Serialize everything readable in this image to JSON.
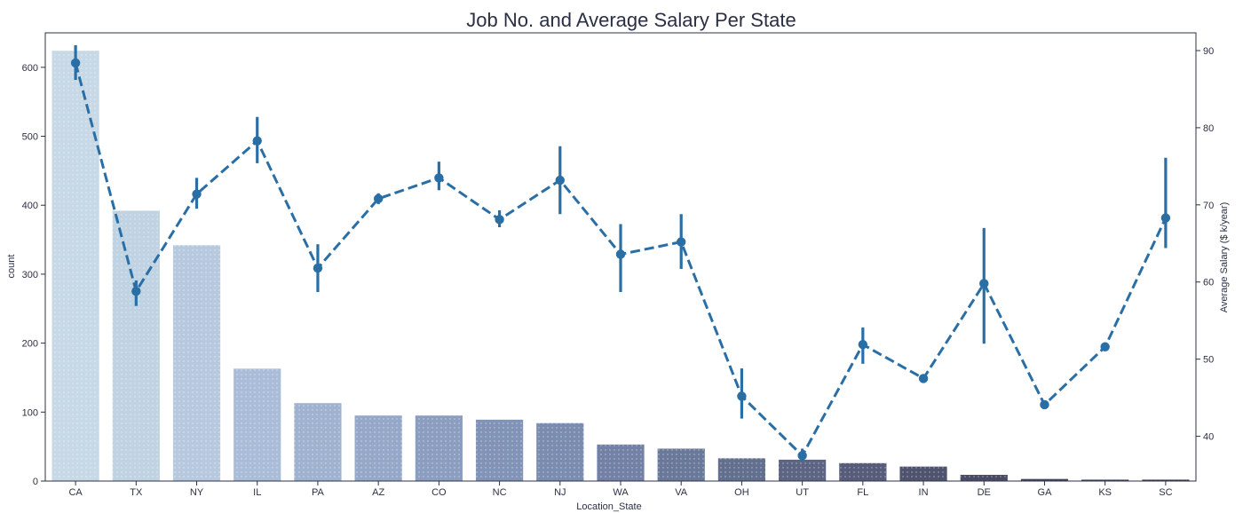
{
  "chart_data": {
    "type": "bar",
    "title": "Job No. and Average Salary Per State",
    "xlabel": "Location_State",
    "ylabel": "count",
    "y2label": "Average Salary ($ k/year)",
    "categories": [
      "CA",
      "TX",
      "NY",
      "IL",
      "PA",
      "AZ",
      "CO",
      "NC",
      "NJ",
      "WA",
      "VA",
      "OH",
      "UT",
      "FL",
      "IN",
      "DE",
      "GA",
      "KS",
      "SC"
    ],
    "ylim": [
      0,
      650
    ],
    "yticks": [
      0,
      100,
      200,
      300,
      400,
      500,
      600
    ],
    "y2lim": [
      34.2,
      92.3
    ],
    "y2ticks": [
      40,
      50,
      60,
      70,
      80,
      90
    ],
    "grid": false,
    "series": [
      {
        "kind": "bar",
        "values": [
          624,
          392,
          342,
          163,
          113,
          95,
          95,
          89,
          84,
          53,
          47,
          33,
          31,
          26,
          21,
          9,
          3,
          2,
          2
        ],
        "colors": [
          "#c7d9e6",
          "#c0d3e3",
          "#b7c9de",
          "#aabdd8",
          "#9fb3d0",
          "#95a8c8",
          "#8b9ec0",
          "#8194b8",
          "#7a8cb0",
          "#7281a5",
          "#6a7899",
          "#636f8e",
          "#5c6584",
          "#565c79",
          "#4f536e",
          "#484b64",
          "#424359",
          "#3c3c50",
          "#363646"
        ]
      },
      {
        "kind": "line",
        "axis": "right",
        "style": "dashed",
        "color": "#2a6ea6",
        "values": [
          88.4,
          58.8,
          71.4,
          78.3,
          61.8,
          70.8,
          73.5,
          68.1,
          73.2,
          63.6,
          65.2,
          45.2,
          37.5,
          51.9,
          47.5,
          59.8,
          44.1,
          51.6,
          68.3
        ],
        "error_low": [
          86.2,
          56.9,
          69.5,
          75.4,
          58.7,
          70.1,
          71.9,
          67.1,
          68.8,
          58.7,
          61.7,
          42.3,
          36.8,
          49.4,
          47.5,
          52.0,
          44.1,
          51.6,
          64.4
        ],
        "error_high": [
          90.7,
          60.2,
          73.5,
          81.4,
          64.9,
          71.5,
          75.6,
          69.3,
          77.6,
          67.5,
          68.8,
          48.8,
          38.4,
          54.1,
          47.5,
          67.0,
          44.1,
          51.6,
          76.1
        ]
      }
    ]
  }
}
